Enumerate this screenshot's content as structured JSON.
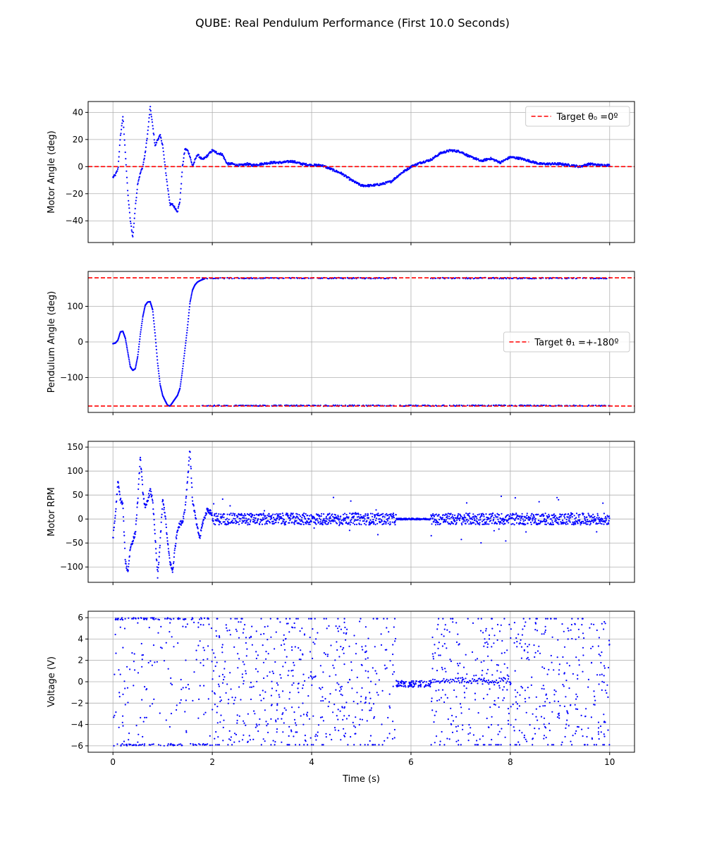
{
  "figure": {
    "title": "QUBE: Real Pendulum Performance (First 10.0 Seconds)"
  },
  "chart_data": [
    {
      "type": "scatter",
      "ylabel": "Motor Angle (deg)",
      "xlabel": "",
      "xlim": [
        -0.5,
        10.5
      ],
      "ylim": [
        -56,
        48
      ],
      "xticks": [
        0,
        2,
        4,
        6,
        8,
        10
      ],
      "yticks": [
        -40,
        -20,
        0,
        20,
        40
      ],
      "show_xticklabels": false,
      "grid": true,
      "series_color": "#0000ff",
      "hlines": [
        {
          "y": 0,
          "color": "#ff0000"
        }
      ],
      "legend": {
        "position": "upper-right",
        "text": "Target θ₀ =0º",
        "color": "#ff0000"
      },
      "x": [
        0,
        0.05,
        0.1,
        0.15,
        0.2,
        0.25,
        0.3,
        0.35,
        0.4,
        0.45,
        0.5,
        0.55,
        0.6,
        0.65,
        0.7,
        0.75,
        0.8,
        0.85,
        0.9,
        0.95,
        1.0,
        1.05,
        1.1,
        1.15,
        1.2,
        1.3,
        1.35,
        1.4,
        1.45,
        1.5,
        1.55,
        1.6,
        1.7,
        1.8,
        1.9,
        2.0,
        2.1,
        2.2,
        2.3,
        2.4,
        2.5,
        2.6,
        2.7,
        2.8,
        3.0,
        3.2,
        3.4,
        3.6,
        3.8,
        4.0,
        4.2,
        4.4,
        4.6,
        4.8,
        5.0,
        5.2,
        5.4,
        5.6,
        5.8,
        6.0,
        6.2,
        6.4,
        6.6,
        6.8,
        7.0,
        7.2,
        7.3,
        7.4,
        7.6,
        7.8,
        8.0,
        8.2,
        8.4,
        8.6,
        8.8,
        9.0,
        9.2,
        9.4,
        9.6,
        9.8,
        10.0
      ],
      "y": [
        -8,
        -6,
        -2,
        22,
        37,
        10,
        -20,
        -40,
        -52,
        -30,
        -12,
        -5,
        0,
        10,
        25,
        44,
        30,
        15,
        20,
        23,
        16,
        0,
        -15,
        -28,
        -28,
        -33,
        -25,
        0,
        13,
        12,
        8,
        0,
        9,
        5,
        8,
        12,
        10,
        9,
        2,
        2,
        1,
        1,
        2,
        1,
        2,
        3,
        3,
        4,
        2,
        1,
        1,
        -2,
        -5,
        -10,
        -14,
        -14,
        -13,
        -11,
        -5,
        0,
        3,
        5,
        10,
        12,
        11,
        7,
        6,
        4,
        6,
        3,
        7,
        6,
        4,
        2,
        2,
        2,
        1,
        0,
        2,
        1,
        1
      ],
      "noise": 0.8
    },
    {
      "type": "scatter",
      "ylabel": "Pendulum Angle (deg)",
      "xlabel": "",
      "xlim": [
        -0.5,
        10.5
      ],
      "ylim": [
        -198,
        198
      ],
      "xticks": [
        0,
        2,
        4,
        6,
        8,
        10
      ],
      "yticks": [
        -100,
        0,
        100
      ],
      "show_xticklabels": false,
      "grid": true,
      "series_color": "#0000ff",
      "hlines": [
        {
          "y": 180,
          "color": "#ff0000"
        },
        {
          "y": -180,
          "color": "#ff0000"
        }
      ],
      "legend": {
        "position": "center-right",
        "text": "Target θ₁ =+-180º",
        "color": "#ff0000"
      },
      "x": [
        0,
        0.05,
        0.1,
        0.15,
        0.2,
        0.25,
        0.3,
        0.35,
        0.4,
        0.45,
        0.5,
        0.55,
        0.6,
        0.65,
        0.7,
        0.75,
        0.8,
        0.85,
        0.9,
        0.95,
        1.0,
        1.05,
        1.1,
        1.15,
        1.2,
        1.25,
        1.3,
        1.35,
        1.4,
        1.45,
        1.5,
        1.55,
        1.6,
        1.65,
        1.7,
        1.75,
        1.8,
        1.85,
        1.9
      ],
      "y": [
        -5,
        -3,
        5,
        28,
        30,
        10,
        -30,
        -70,
        -80,
        -75,
        -40,
        20,
        70,
        103,
        112,
        113,
        90,
        20,
        -60,
        -120,
        -150,
        -165,
        -178,
        -180,
        -170,
        -160,
        -150,
        -130,
        -80,
        -20,
        40,
        110,
        145,
        160,
        168,
        172,
        175,
        178,
        180
      ],
      "wrapped_segments": [
        {
          "x_start": 1.8,
          "x_end": 5.7,
          "value": 179
        },
        {
          "x_start": 6.4,
          "x_end": 10.0,
          "value": 179
        },
        {
          "x_start": 1.8,
          "x_end": 10.0,
          "value": -179
        }
      ]
    },
    {
      "type": "scatter",
      "ylabel": "Motor RPM",
      "xlabel": "",
      "xlim": [
        -0.5,
        10.5
      ],
      "ylim": [
        -132,
        162
      ],
      "xticks": [
        0,
        2,
        4,
        6,
        8,
        10
      ],
      "yticks": [
        -100,
        -50,
        0,
        50,
        100,
        150
      ],
      "show_xticklabels": false,
      "grid": true,
      "series_color": "#0000ff",
      "x": [
        0,
        0.05,
        0.1,
        0.15,
        0.2,
        0.25,
        0.3,
        0.35,
        0.4,
        0.45,
        0.5,
        0.55,
        0.6,
        0.65,
        0.7,
        0.75,
        0.8,
        0.85,
        0.9,
        0.95,
        1.0,
        1.05,
        1.1,
        1.15,
        1.2,
        1.25,
        1.3,
        1.35,
        1.4,
        1.45,
        1.5,
        1.55,
        1.6,
        1.65,
        1.7,
        1.75,
        1.8,
        1.9,
        2.0
      ],
      "y": [
        -40,
        10,
        78,
        40,
        30,
        -90,
        -110,
        -60,
        -45,
        -30,
        40,
        130,
        60,
        20,
        40,
        60,
        40,
        -40,
        -120,
        -50,
        40,
        10,
        -50,
        -90,
        -110,
        -60,
        -20,
        -10,
        -5,
        20,
        80,
        148,
        40,
        10,
        -20,
        -40,
        -10,
        20,
        10
      ],
      "noise_after_x": 2.0,
      "noise_amplitude": 12,
      "quiet_x_range": [
        5.7,
        6.4
      ]
    },
    {
      "type": "scatter",
      "ylabel": "Voltage (V)",
      "xlabel": "Time (s)",
      "xlim": [
        -0.5,
        10.5
      ],
      "ylim": [
        -6.6,
        6.6
      ],
      "xticks": [
        0,
        2,
        4,
        6,
        8,
        10
      ],
      "yticks": [
        -6,
        -4,
        -2,
        0,
        2,
        4,
        6
      ],
      "show_xticklabels": true,
      "grid": true,
      "series_color": "#0000ff",
      "saturation": 6,
      "points": 1400,
      "quiet_x_range": [
        5.7,
        6.4
      ]
    }
  ]
}
